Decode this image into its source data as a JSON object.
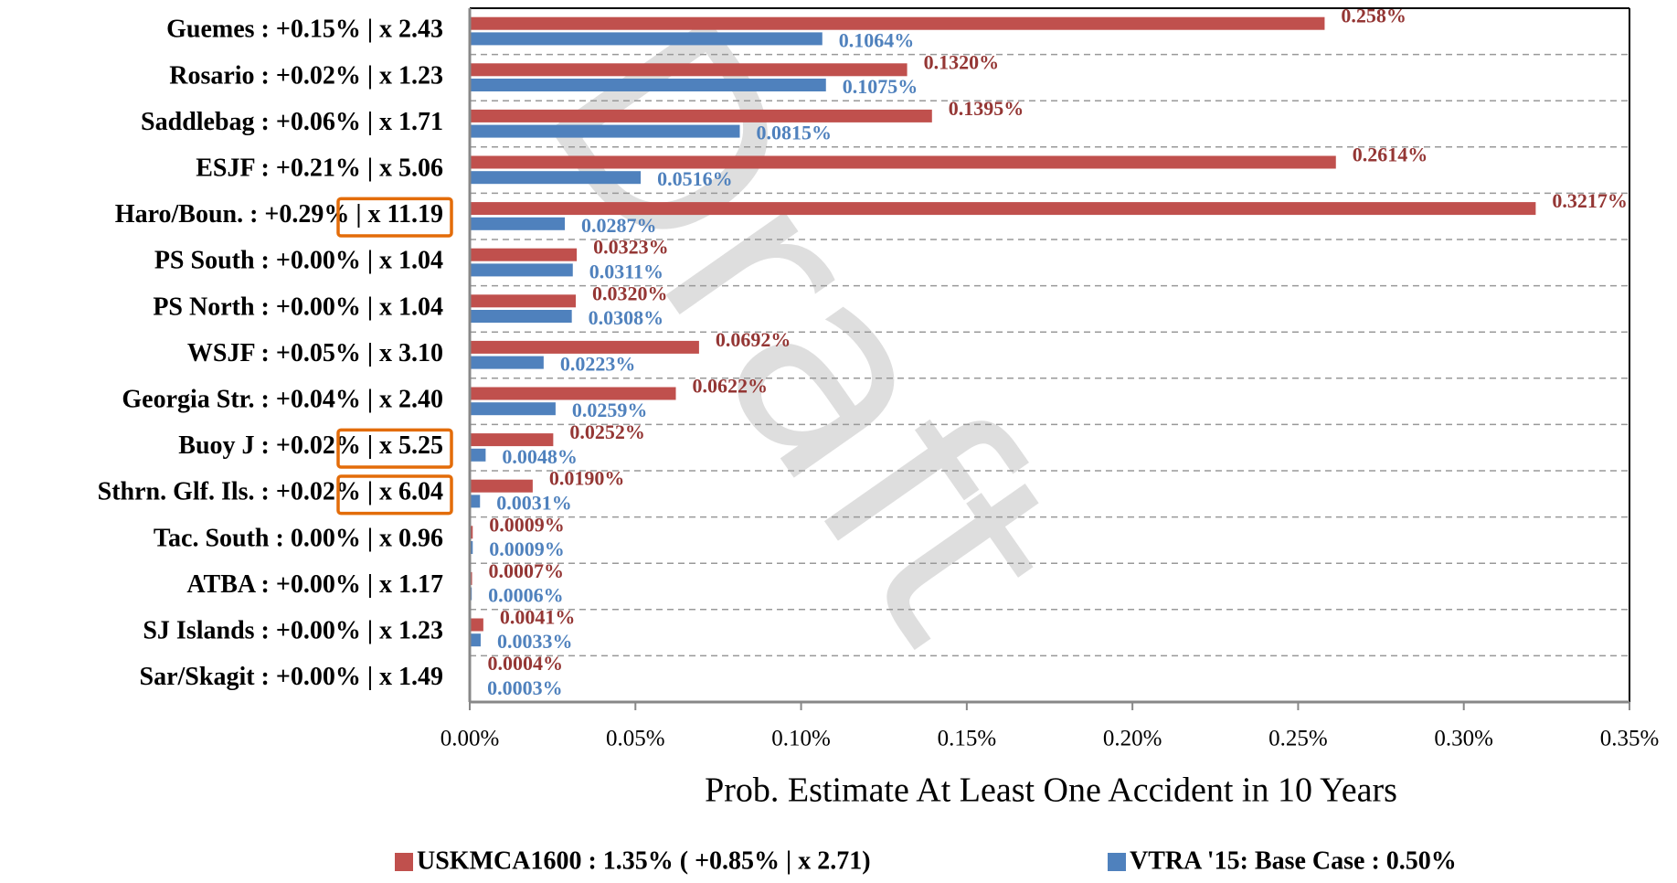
{
  "chart_data": {
    "type": "bar",
    "orientation": "horizontal",
    "watermark": "Draft",
    "categories": [
      "Guemes : +0.15% |  x 2.43",
      "Rosario : +0.02% |  x 1.23",
      "Saddlebag : +0.06% |  x 1.71",
      "ESJF : +0.21% |  x 5.06",
      "Haro/Boun. : +0.29% |  x 11.19",
      "PS South : +0.00% |  x 1.04",
      "PS North : +0.00% |  x 1.04",
      "WSJF : +0.05% |  x 3.10",
      "Georgia Str. : +0.04% |  x 2.40",
      "Buoy J : +0.02%  |  x 5.25",
      "Sthrn. Glf. Ils. : +0.02%  |  x 6.04",
      "Tac. South : 0.00% |  x 0.96",
      "ATBA : +0.00% |  x 1.17",
      "SJ Islands : +0.00% |  x 1.23",
      "Sar/Skagit : +0.00% |  x 1.49"
    ],
    "series": [
      {
        "name": "USKMCA1600 : 1.35% ( +0.85% |  x 2.71)",
        "color": "#c0504d",
        "values": [
          0.258,
          0.132,
          0.1395,
          0.2614,
          0.3217,
          0.0323,
          0.032,
          0.0692,
          0.0622,
          0.0252,
          0.019,
          0.0009,
          0.0007,
          0.0041,
          0.0004
        ],
        "value_labels": [
          "0.258%",
          "0.1320%",
          "0.1395%",
          "0.2614%",
          "0.3217%",
          "0.0323%",
          "0.0320%",
          "0.0692%",
          "0.0622%",
          "0.0252%",
          "0.0190%",
          "0.0009%",
          "0.0007%",
          "0.0041%",
          "0.0004%"
        ]
      },
      {
        "name": "VTRA '15: Base Case : 0.50%",
        "color": "#4f81bd",
        "values": [
          0.1064,
          0.1075,
          0.0815,
          0.0516,
          0.0287,
          0.0311,
          0.0308,
          0.0223,
          0.0259,
          0.0048,
          0.0031,
          0.0009,
          0.0006,
          0.0033,
          0.0003
        ],
        "value_labels": [
          "0.1064%",
          "0.1075%",
          "0.0815%",
          "0.0516%",
          "0.0287%",
          "0.0311%",
          "0.0308%",
          "0.0223%",
          "0.0259%",
          "0.0048%",
          "0.0031%",
          "0.0009%",
          "0.0006%",
          "0.0033%",
          "0.0003%"
        ]
      }
    ],
    "xlabel": "Prob. Estimate At Least One Accident in 10 Years",
    "xlim": [
      0,
      0.35
    ],
    "xticks": [
      {
        "value": 0,
        "label": "0.00%"
      },
      {
        "value": 0.05,
        "label": "0.05%"
      },
      {
        "value": 0.1,
        "label": "0.10%"
      },
      {
        "value": 0.15,
        "label": "0.15%"
      },
      {
        "value": 0.2,
        "label": "0.20%"
      },
      {
        "value": 0.25,
        "label": "0.25%"
      },
      {
        "value": 0.3,
        "label": "0.30%"
      },
      {
        "value": 0.35,
        "label": "0.35%"
      }
    ],
    "legend": "bottom"
  }
}
